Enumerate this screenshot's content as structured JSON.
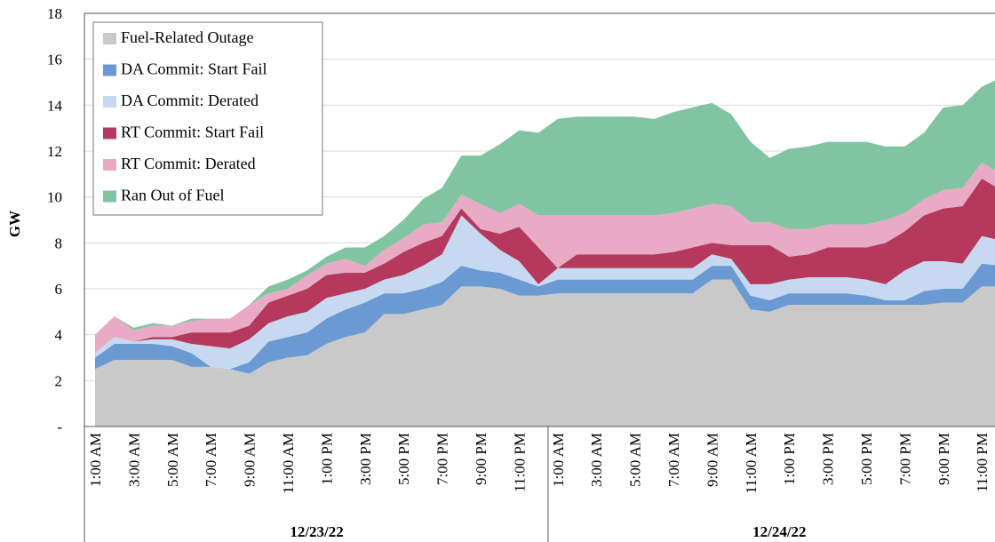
{
  "chart_data": {
    "type": "stacked_area",
    "y_label": "GW",
    "categories": [
      "1:00 AM",
      null,
      "3:00 AM",
      null,
      "5:00 AM",
      null,
      "7:00 AM",
      null,
      "9:00 AM",
      null,
      "11:00 AM",
      null,
      "1:00 PM",
      null,
      "3:00 PM",
      null,
      "5:00 PM",
      null,
      "7:00 PM",
      null,
      "9:00 PM",
      null,
      "11:00 PM",
      null,
      "1:00 AM",
      null,
      "3:00 AM",
      null,
      "5:00 AM",
      null,
      "7:00 AM",
      null,
      "9:00 AM",
      null,
      "11:00 AM",
      null,
      "1:00 PM",
      null,
      "3:00 PM",
      null,
      "5:00 PM",
      null,
      "7:00 PM",
      null,
      "9:00 PM",
      null,
      "11:00 PM",
      null
    ],
    "days": [
      "12/23/22",
      "12/24/22"
    ],
    "ylim": [
      0,
      18
    ],
    "yticks": [
      {
        "value": 0,
        "label": "-"
      },
      2,
      4,
      6,
      8,
      10,
      12,
      14,
      16,
      18
    ],
    "grid": true,
    "series": [
      {
        "name": "Fuel-Related Outage",
        "color": "#c9c9c9",
        "values": [
          2.5,
          2.9,
          2.9,
          2.9,
          2.9,
          2.6,
          2.6,
          2.5,
          2.3,
          2.8,
          3.0,
          3.1,
          3.6,
          3.9,
          4.1,
          4.9,
          4.9,
          5.1,
          5.3,
          6.1,
          6.1,
          6.0,
          5.7,
          5.7,
          5.8,
          5.8,
          5.8,
          5.8,
          5.8,
          5.8,
          5.8,
          5.8,
          6.4,
          6.4,
          5.1,
          5.0,
          5.3,
          5.3,
          5.3,
          5.3,
          5.3,
          5.3,
          5.3,
          5.3,
          5.4,
          5.4,
          6.1,
          6.1
        ]
      },
      {
        "name": "DA Commit:  Start Fail",
        "color": "#6b9ad2",
        "values": [
          0.5,
          0.7,
          0.7,
          0.7,
          0.6,
          0.6,
          0,
          0,
          0.5,
          0.9,
          0.9,
          1.0,
          1.1,
          1.2,
          1.3,
          0.9,
          0.9,
          0.9,
          1.0,
          0.9,
          0.7,
          0.7,
          0.7,
          0.4,
          0.6,
          0.6,
          0.6,
          0.6,
          0.6,
          0.6,
          0.6,
          0.6,
          0.6,
          0.6,
          0.6,
          0.5,
          0.5,
          0.5,
          0.5,
          0.5,
          0.4,
          0.2,
          0.2,
          0.6,
          0.6,
          0.6,
          1.0,
          0.9
        ]
      },
      {
        "name": "DA Commit: Derated",
        "color": "#c6d9f1",
        "values": [
          0.2,
          0.3,
          0.1,
          0.2,
          0.3,
          0.4,
          0.9,
          0.9,
          1.0,
          0.8,
          0.9,
          0.9,
          0.9,
          0.7,
          0.6,
          0.6,
          0.8,
          1.0,
          1.2,
          2.2,
          1.6,
          1.0,
          0.8,
          0.1,
          0.5,
          0.5,
          0.5,
          0.5,
          0.5,
          0.5,
          0.5,
          0.5,
          0.5,
          0.3,
          0.5,
          0.7,
          0.6,
          0.7,
          0.7,
          0.7,
          0.7,
          0.7,
          1.3,
          1.3,
          1.2,
          1.1,
          1.2,
          1.1
        ]
      },
      {
        "name": "RT Commit: Start Fail",
        "color": "#b4395c",
        "values": [
          0,
          0,
          0,
          0.1,
          0.1,
          0.5,
          0.6,
          0.7,
          0.6,
          0.9,
          0.9,
          1.0,
          1.0,
          0.9,
          0.7,
          0.7,
          1.0,
          1.0,
          0.8,
          0.3,
          0.2,
          0.7,
          1.5,
          1.6,
          0,
          0.6,
          0.6,
          0.6,
          0.6,
          0.6,
          0.7,
          0.9,
          0.5,
          0.6,
          1.7,
          1.7,
          1.0,
          1.0,
          1.3,
          1.3,
          1.4,
          1.8,
          1.7,
          2.0,
          2.3,
          2.5,
          2.5,
          2.2
        ]
      },
      {
        "name": "RT Commit: Derated",
        "color": "#e8aac5",
        "values": [
          0.8,
          0.9,
          0.5,
          0.5,
          0.5,
          0.5,
          0.6,
          0.6,
          0.9,
          0.4,
          0.3,
          0.6,
          0.5,
          0.6,
          0.3,
          0.6,
          0.6,
          0.8,
          0.6,
          0.6,
          1.1,
          0.9,
          1.0,
          1.4,
          2.3,
          1.7,
          1.7,
          1.7,
          1.7,
          1.7,
          1.7,
          1.7,
          1.7,
          1.7,
          1.0,
          1.0,
          1.2,
          1.1,
          1.0,
          1.0,
          1.0,
          1.0,
          0.8,
          0.7,
          0.8,
          0.8,
          0.7,
          0.7
        ]
      },
      {
        "name": "Ran Out of Fuel",
        "color": "#80c4a1",
        "values": [
          0,
          0,
          0.1,
          0.1,
          0,
          0.1,
          0,
          0,
          0,
          0.3,
          0.4,
          0.2,
          0.3,
          0.5,
          0.8,
          0.6,
          0.8,
          1.1,
          1.5,
          1.7,
          2.1,
          3.0,
          3.2,
          3.6,
          4.2,
          4.3,
          4.3,
          4.3,
          4.3,
          4.2,
          4.4,
          4.4,
          4.4,
          4.0,
          3.5,
          2.8,
          3.5,
          3.6,
          3.6,
          3.6,
          3.6,
          3.2,
          2.9,
          2.9,
          3.6,
          3.6,
          3.3,
          4.2
        ]
      }
    ]
  }
}
